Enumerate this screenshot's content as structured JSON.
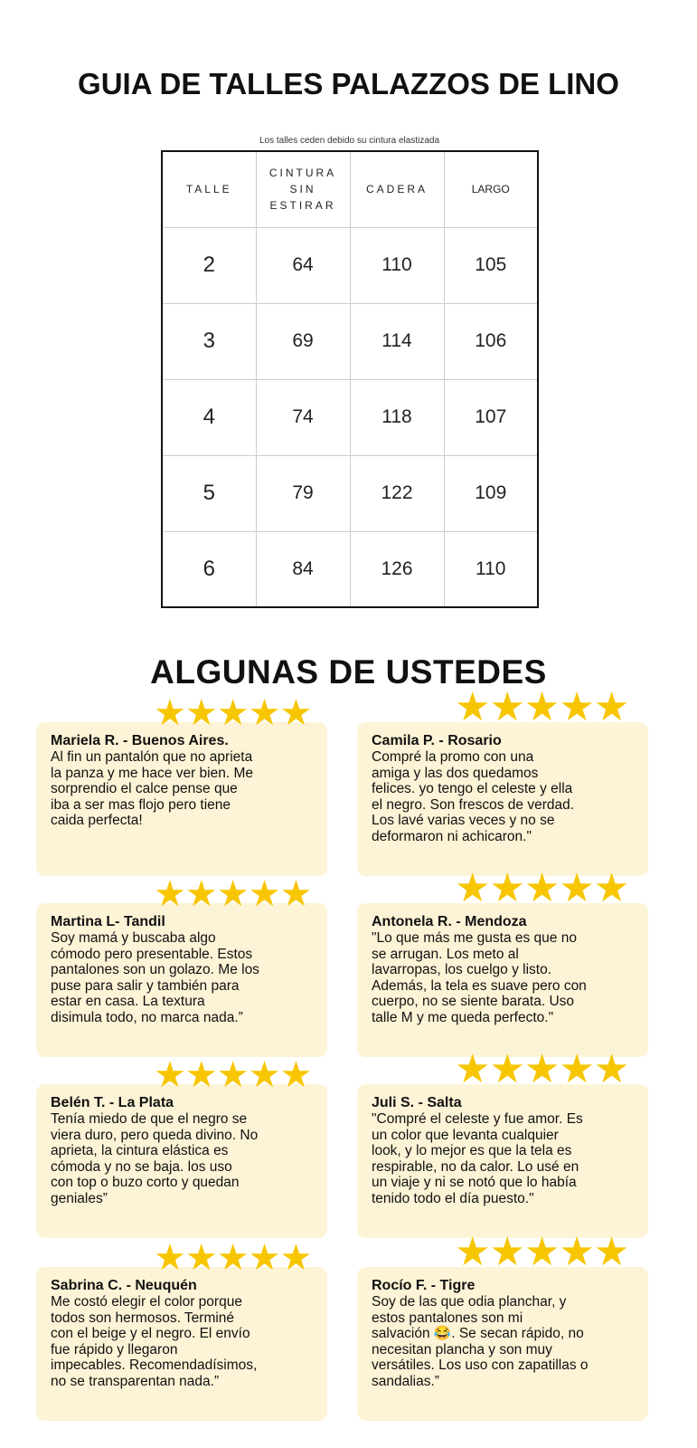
{
  "title": "GUIA DE TALLES PALAZZOS DE LINO",
  "table": {
    "note": "Los talles ceden debido su cintura elastizada",
    "headers": [
      "TALLE",
      "CINTURA SIN ESTIRAR",
      "CADERA",
      "LARGO"
    ],
    "rows": [
      [
        "2",
        "64",
        "110",
        "105"
      ],
      [
        "3",
        "69",
        "114",
        "106"
      ],
      [
        "4",
        "74",
        "118",
        "107"
      ],
      [
        "5",
        "79",
        "122",
        "109"
      ],
      [
        "6",
        "84",
        "126",
        "110"
      ]
    ]
  },
  "reviews_title": "ALGUNAS DE USTEDES",
  "star_color": "#f7c600",
  "card_color": "#fdf3d6",
  "reviews": [
    {
      "name": "Mariela R. - Buenos Aires.",
      "rating": 5,
      "text": "Al fin un pantalón que no aprieta\nla panza y me hace ver bien. Me\nsorprendio el calce pense que\niba a ser mas flojo pero tiene\ncaida perfecta!"
    },
    {
      "name": "Camila P. - Rosario",
      "rating": 5,
      "text": "Compré la promo con una\namiga y las dos quedamos\nfelices. yo tengo el celeste y ella\nel negro. Son frescos de verdad.\nLos lavé varias veces y no se\ndeformaron ni achicaron.\""
    },
    {
      "name": "Martina L- Tandil",
      "rating": 5,
      "text": "Soy mamá y buscaba algo\ncómodo pero presentable. Estos\npantalones son un golazo. Me los\npuse para salir y también para\nestar en casa. La textura\ndisimula todo, no marca nada.”"
    },
    {
      "name": "Antonela R. - Mendoza",
      "rating": 5,
      "text": "\"Lo que más me gusta es que no\nse arrugan. Los meto al\nlavarropas, los cuelgo y listo.\nAdemás, la tela es suave pero con\ncuerpo, no se siente barata. Uso\ntalle M y me queda perfecto.\""
    },
    {
      "name": "Belén T. - La Plata",
      "rating": 5,
      "text": "Tenía miedo de que el negro se\nviera duro, pero queda divino. No\naprieta, la cintura elástica es\ncómoda y no se baja. los uso\ncon top o buzo corto y quedan\ngeniales”"
    },
    {
      "name": "Juli S. - Salta",
      "rating": 5,
      "text": "\"Compré el celeste y fue amor. Es\nun color que levanta cualquier\nlook, y lo mejor es que la tela es\nrespirable, no da calor. Lo usé en\nun viaje y ni se notó que lo había\ntenido todo el día puesto.\""
    },
    {
      "name": "Sabrina C. - Neuquén",
      "rating": 5,
      "text": "Me costó elegir el color porque\ntodos son hermosos. Terminé\ncon el beige y el negro. El envío\nfue rápido y llegaron\nimpecables. Recomendadísimos,\nno se transparentan nada.”"
    },
    {
      "name": "Rocío F. - Tigre",
      "rating": 5,
      "text": "Soy de las que odia planchar, y\nestos pantalones son mi\nsalvación 😂. Se secan rápido, no\nnecesitan plancha y son muy\nversátiles. Los uso con zapatillas o\nsandalias.”"
    }
  ]
}
